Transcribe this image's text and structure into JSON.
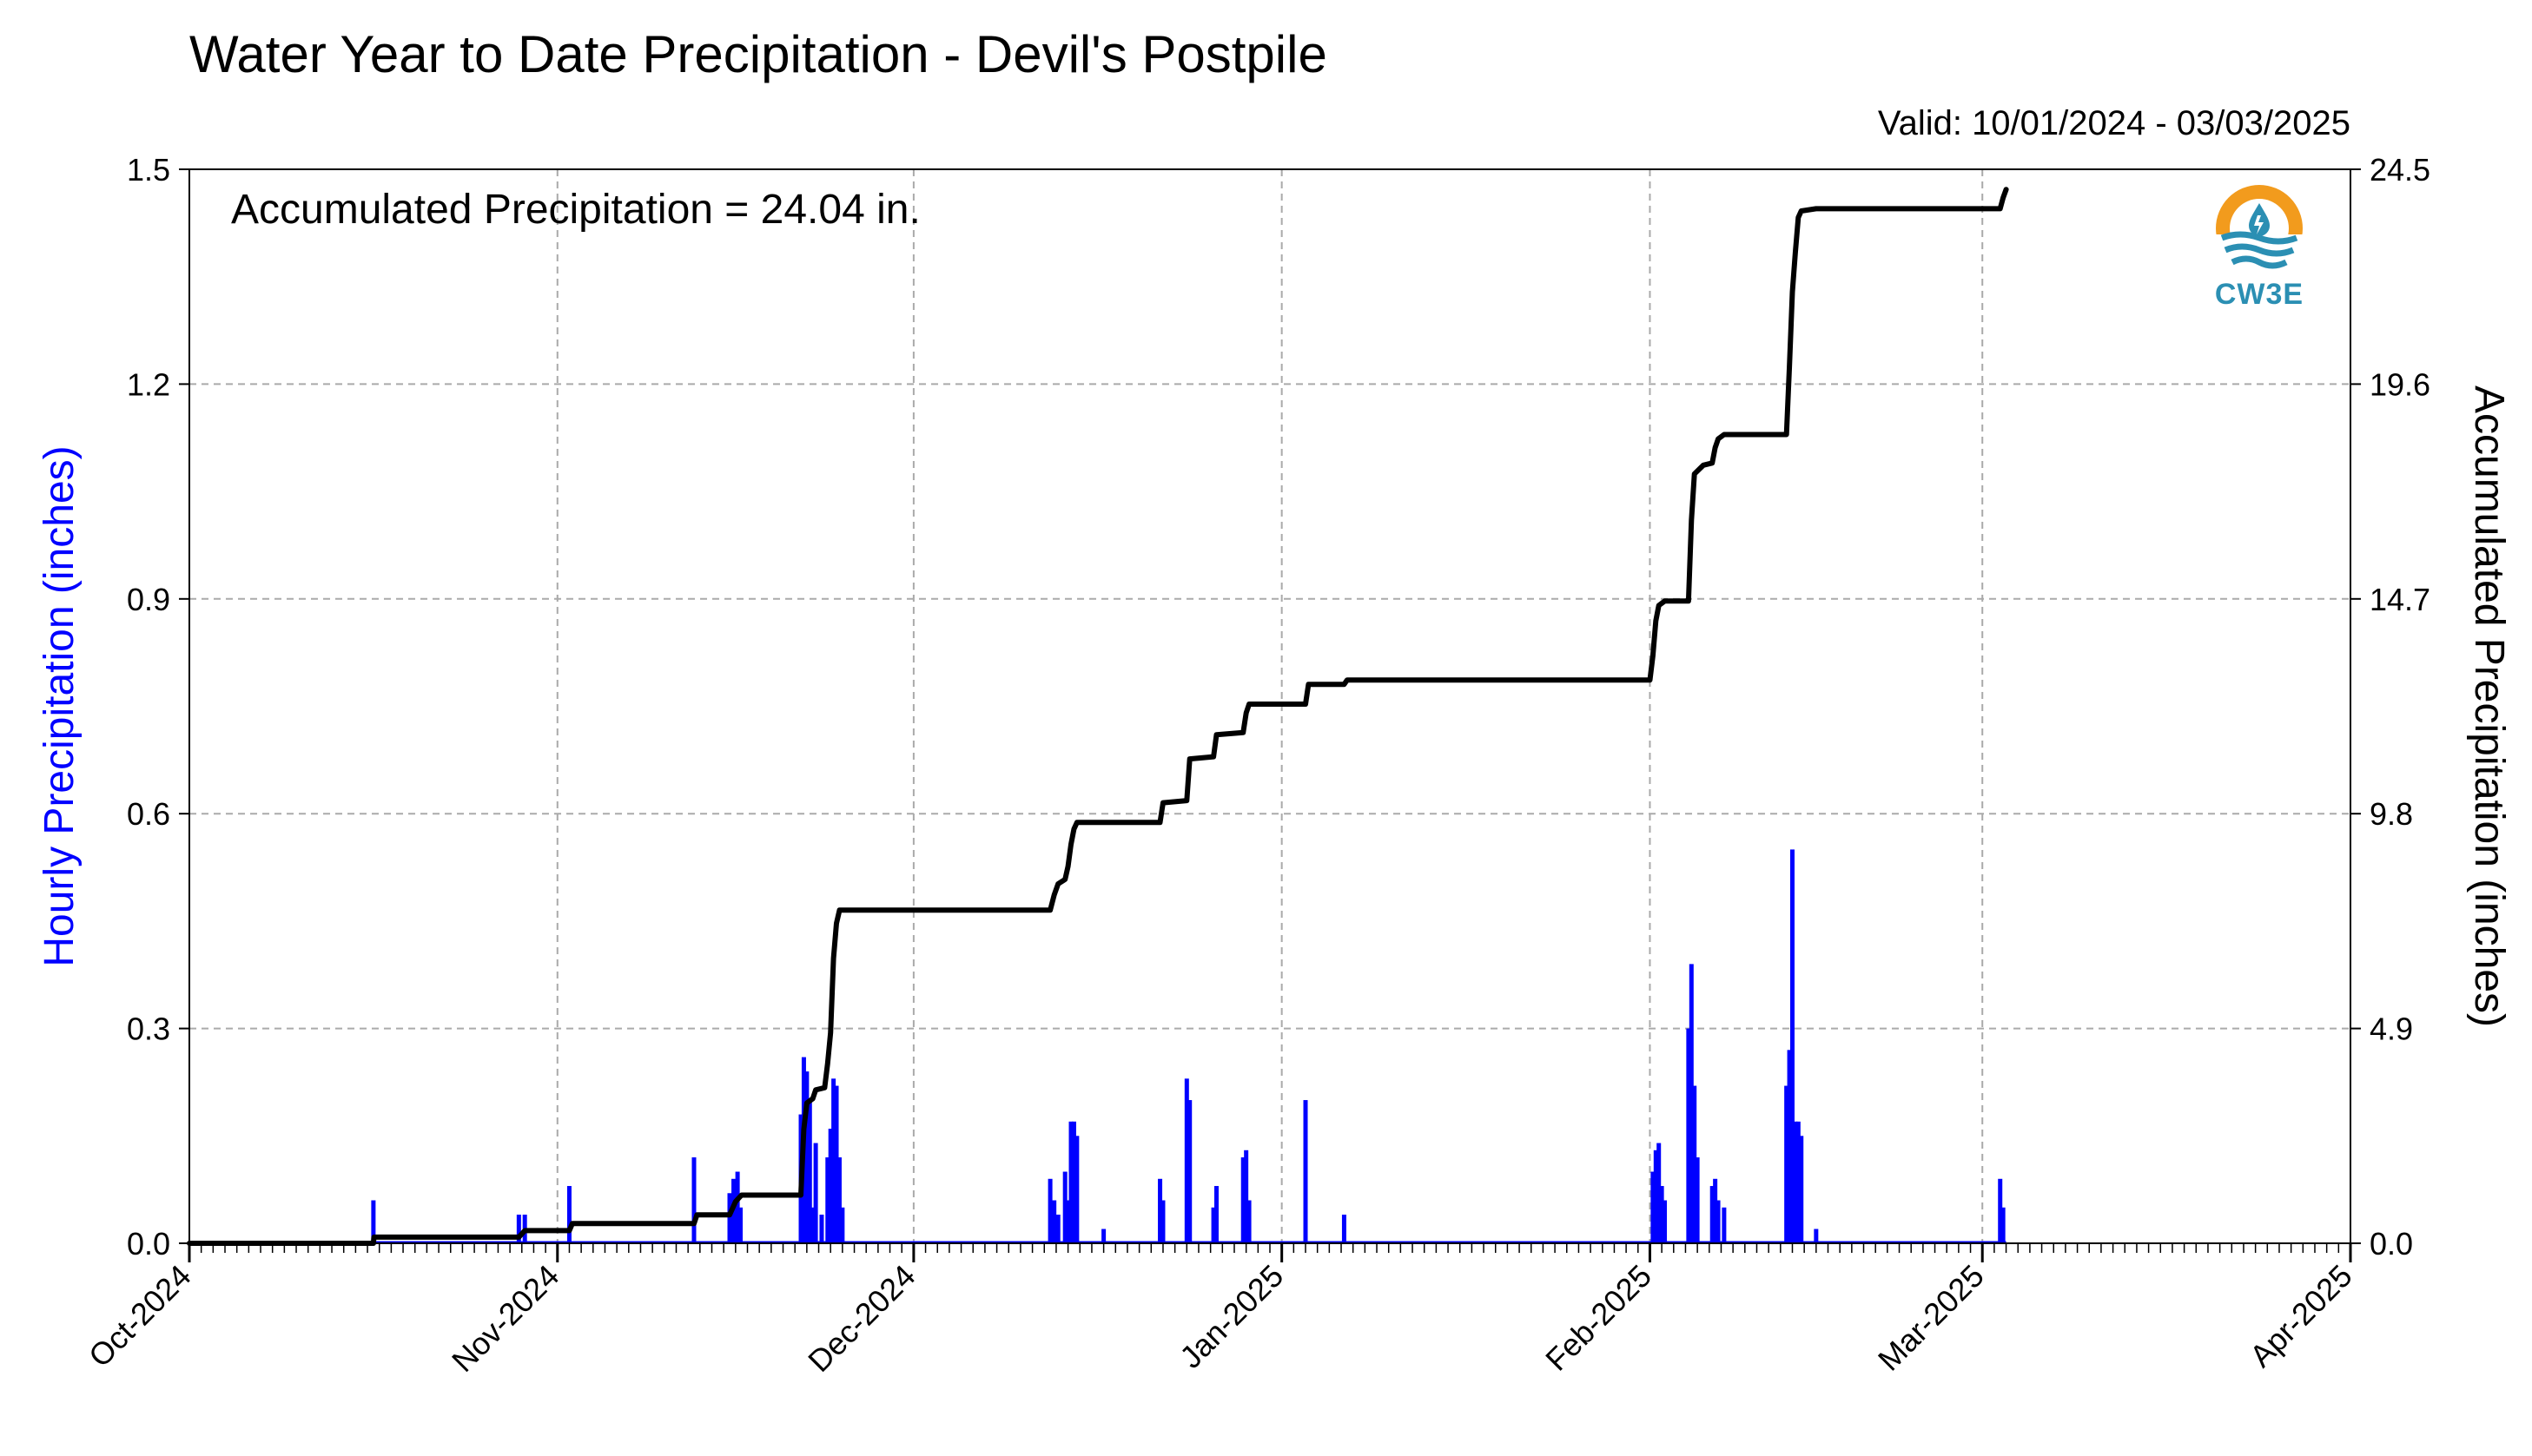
{
  "title": "Water Year to Date Precipitation - Devil's Postpile",
  "valid_label": "Valid: 10/01/2024 - 03/03/2025",
  "annotation": "Accumulated Precipitation = 24.04 in.",
  "logo_text": "CW3E",
  "colors": {
    "hourly": "#0000ff",
    "accumulated": "#000000",
    "grid": "#aaaaaa",
    "logo_orange": "#f29b1d",
    "logo_blue": "#2b8fb3"
  },
  "chart_data": {
    "type": "bar",
    "xlabel": "",
    "ylabel_left": "Hourly Precipitation (inches)",
    "ylabel_right": "Accumulated Precipitation (inches)",
    "xlim": [
      "2024-10-01",
      "2025-04-01"
    ],
    "ylim_left": [
      0,
      1.5
    ],
    "ylim_right": [
      0,
      24.5
    ],
    "x_ticks": [
      {
        "date": "2024-10-01",
        "label": "Oct-2024"
      },
      {
        "date": "2024-11-01",
        "label": "Nov-2024"
      },
      {
        "date": "2024-12-01",
        "label": "Dec-2024"
      },
      {
        "date": "2025-01-01",
        "label": "Jan-2025"
      },
      {
        "date": "2025-02-01",
        "label": "Feb-2025"
      },
      {
        "date": "2025-03-01",
        "label": "Mar-2025"
      },
      {
        "date": "2025-04-01",
        "label": "Apr-2025"
      }
    ],
    "y_ticks_left": [
      {
        "v": 0,
        "label": "0.0"
      },
      {
        "v": 0.3,
        "label": "0.3"
      },
      {
        "v": 0.6,
        "label": "0.6"
      },
      {
        "v": 0.9,
        "label": "0.9"
      },
      {
        "v": 1.2,
        "label": "1.2"
      },
      {
        "v": 1.5,
        "label": "1.5"
      }
    ],
    "y_ticks_right": [
      {
        "v": 0,
        "label": "0.0"
      },
      {
        "v": 4.9,
        "label": "4.9"
      },
      {
        "v": 9.8,
        "label": "9.8"
      },
      {
        "v": 14.7,
        "label": "14.7"
      },
      {
        "v": 19.6,
        "label": "19.6"
      },
      {
        "v": 24.5,
        "label": "24.5"
      }
    ],
    "grid": true,
    "series": [
      {
        "name": "Hourly Precipitation",
        "axis": "left",
        "kind": "bar",
        "points": [
          {
            "x": "2024-10-16T12:00",
            "y": 0.06
          },
          {
            "x": "2024-10-28T18:00",
            "y": 0.04
          },
          {
            "x": "2024-10-29T06:00",
            "y": 0.04
          },
          {
            "x": "2024-11-02T00:00",
            "y": 0.08
          },
          {
            "x": "2024-11-12T12:00",
            "y": 0.12
          },
          {
            "x": "2024-11-15T12:00",
            "y": 0.07
          },
          {
            "x": "2024-11-15T20:00",
            "y": 0.09
          },
          {
            "x": "2024-11-16T04:00",
            "y": 0.1
          },
          {
            "x": "2024-11-16T10:00",
            "y": 0.05
          },
          {
            "x": "2024-11-21T12:00",
            "y": 0.18
          },
          {
            "x": "2024-11-21T18:00",
            "y": 0.26
          },
          {
            "x": "2024-11-22T00:00",
            "y": 0.24
          },
          {
            "x": "2024-11-22T06:00",
            "y": 0.2
          },
          {
            "x": "2024-11-22T12:00",
            "y": 0.05
          },
          {
            "x": "2024-11-22T18:00",
            "y": 0.14
          },
          {
            "x": "2024-11-23T06:00",
            "y": 0.04
          },
          {
            "x": "2024-11-23T18:00",
            "y": 0.12
          },
          {
            "x": "2024-11-24T00:00",
            "y": 0.16
          },
          {
            "x": "2024-11-24T06:00",
            "y": 0.23
          },
          {
            "x": "2024-11-24T12:00",
            "y": 0.22
          },
          {
            "x": "2024-11-24T18:00",
            "y": 0.12
          },
          {
            "x": "2024-11-25T00:00",
            "y": 0.05
          },
          {
            "x": "2024-12-12T12:00",
            "y": 0.09
          },
          {
            "x": "2024-12-12T20:00",
            "y": 0.06
          },
          {
            "x": "2024-12-13T04:00",
            "y": 0.04
          },
          {
            "x": "2024-12-13T18:00",
            "y": 0.1
          },
          {
            "x": "2024-12-14T00:00",
            "y": 0.06
          },
          {
            "x": "2024-12-14T06:00",
            "y": 0.17
          },
          {
            "x": "2024-12-14T12:00",
            "y": 0.17
          },
          {
            "x": "2024-12-14T18:00",
            "y": 0.15
          },
          {
            "x": "2024-12-17T00:00",
            "y": 0.02
          },
          {
            "x": "2024-12-21T18:00",
            "y": 0.09
          },
          {
            "x": "2024-12-22T00:00",
            "y": 0.06
          },
          {
            "x": "2024-12-24T00:00",
            "y": 0.23
          },
          {
            "x": "2024-12-24T06:00",
            "y": 0.2
          },
          {
            "x": "2024-12-26T06:00",
            "y": 0.05
          },
          {
            "x": "2024-12-26T12:00",
            "y": 0.08
          },
          {
            "x": "2024-12-28T18:00",
            "y": 0.12
          },
          {
            "x": "2024-12-29T00:00",
            "y": 0.13
          },
          {
            "x": "2024-12-29T06:00",
            "y": 0.06
          },
          {
            "x": "2025-01-03T00:00",
            "y": 0.2
          },
          {
            "x": "2025-01-06T06:00",
            "y": 0.04
          },
          {
            "x": "2025-02-01T06:00",
            "y": 0.1
          },
          {
            "x": "2025-02-01T12:00",
            "y": 0.13
          },
          {
            "x": "2025-02-01T18:00",
            "y": 0.14
          },
          {
            "x": "2025-02-02T00:00",
            "y": 0.08
          },
          {
            "x": "2025-02-02T06:00",
            "y": 0.06
          },
          {
            "x": "2025-02-04T06:00",
            "y": 0.3
          },
          {
            "x": "2025-02-04T12:00",
            "y": 0.39
          },
          {
            "x": "2025-02-04T18:00",
            "y": 0.22
          },
          {
            "x": "2025-02-05T00:00",
            "y": 0.12
          },
          {
            "x": "2025-02-06T06:00",
            "y": 0.08
          },
          {
            "x": "2025-02-06T12:00",
            "y": 0.09
          },
          {
            "x": "2025-02-06T18:00",
            "y": 0.06
          },
          {
            "x": "2025-02-07T06:00",
            "y": 0.05
          },
          {
            "x": "2025-02-12T12:00",
            "y": 0.22
          },
          {
            "x": "2025-02-12T18:00",
            "y": 0.27
          },
          {
            "x": "2025-02-13T00:00",
            "y": 0.55
          },
          {
            "x": "2025-02-13T06:00",
            "y": 0.17
          },
          {
            "x": "2025-02-13T12:00",
            "y": 0.17
          },
          {
            "x": "2025-02-13T18:00",
            "y": 0.15
          },
          {
            "x": "2025-02-15T00:00",
            "y": 0.02
          },
          {
            "x": "2025-03-02T12:00",
            "y": 0.09
          },
          {
            "x": "2025-03-02T18:00",
            "y": 0.05
          }
        ]
      },
      {
        "name": "Accumulated Precipitation",
        "axis": "right",
        "kind": "line",
        "points": [
          {
            "x": "2024-10-01T00:00",
            "y": 0
          },
          {
            "x": "2024-10-16T12:00",
            "y": 0
          },
          {
            "x": "2024-10-16T13:00",
            "y": 0.14
          },
          {
            "x": "2024-10-28T18:00",
            "y": 0.14
          },
          {
            "x": "2024-10-29T06:00",
            "y": 0.29
          },
          {
            "x": "2024-11-02T00:00",
            "y": 0.29
          },
          {
            "x": "2024-11-02T06:00",
            "y": 0.45
          },
          {
            "x": "2024-11-12T12:00",
            "y": 0.45
          },
          {
            "x": "2024-11-12T18:00",
            "y": 0.65
          },
          {
            "x": "2024-11-15T12:00",
            "y": 0.65
          },
          {
            "x": "2024-11-16T00:00",
            "y": 0.95
          },
          {
            "x": "2024-11-16T12:00",
            "y": 1.1
          },
          {
            "x": "2024-11-21T12:00",
            "y": 1.1
          },
          {
            "x": "2024-11-21T18:00",
            "y": 2.6
          },
          {
            "x": "2024-11-22T00:00",
            "y": 3.2
          },
          {
            "x": "2024-11-22T12:00",
            "y": 3.3
          },
          {
            "x": "2024-11-22T18:00",
            "y": 3.5
          },
          {
            "x": "2024-11-23T12:00",
            "y": 3.55
          },
          {
            "x": "2024-11-23T18:00",
            "y": 4.1
          },
          {
            "x": "2024-11-24T00:00",
            "y": 4.8
          },
          {
            "x": "2024-11-24T06:00",
            "y": 6.5
          },
          {
            "x": "2024-11-24T12:00",
            "y": 7.3
          },
          {
            "x": "2024-11-24T18:00",
            "y": 7.6
          },
          {
            "x": "2024-12-12T12:00",
            "y": 7.6
          },
          {
            "x": "2024-12-12T20:00",
            "y": 7.95
          },
          {
            "x": "2024-12-13T04:00",
            "y": 8.2
          },
          {
            "x": "2024-12-13T18:00",
            "y": 8.3
          },
          {
            "x": "2024-12-14T00:00",
            "y": 8.6
          },
          {
            "x": "2024-12-14T06:00",
            "y": 9.1
          },
          {
            "x": "2024-12-14T12:00",
            "y": 9.45
          },
          {
            "x": "2024-12-14T18:00",
            "y": 9.6
          },
          {
            "x": "2024-12-21T18:00",
            "y": 9.6
          },
          {
            "x": "2024-12-22T00:00",
            "y": 10.05
          },
          {
            "x": "2024-12-24T00:00",
            "y": 10.1
          },
          {
            "x": "2024-12-24T06:00",
            "y": 11.05
          },
          {
            "x": "2024-12-26T06:00",
            "y": 11.1
          },
          {
            "x": "2024-12-26T12:00",
            "y": 11.6
          },
          {
            "x": "2024-12-28T18:00",
            "y": 11.65
          },
          {
            "x": "2024-12-29T00:00",
            "y": 12.1
          },
          {
            "x": "2024-12-29T06:00",
            "y": 12.3
          },
          {
            "x": "2025-01-03T00:00",
            "y": 12.3
          },
          {
            "x": "2025-01-03T06:00",
            "y": 12.75
          },
          {
            "x": "2025-01-06T06:00",
            "y": 12.75
          },
          {
            "x": "2025-01-06T12:00",
            "y": 12.85
          },
          {
            "x": "2025-02-01T00:00",
            "y": 12.85
          },
          {
            "x": "2025-02-01T06:00",
            "y": 13.4
          },
          {
            "x": "2025-02-01T12:00",
            "y": 14.2
          },
          {
            "x": "2025-02-01T18:00",
            "y": 14.55
          },
          {
            "x": "2025-02-02T06:00",
            "y": 14.65
          },
          {
            "x": "2025-02-04T06:00",
            "y": 14.65
          },
          {
            "x": "2025-02-04T12:00",
            "y": 16.5
          },
          {
            "x": "2025-02-04T18:00",
            "y": 17.55
          },
          {
            "x": "2025-02-05T12:00",
            "y": 17.75
          },
          {
            "x": "2025-02-06T06:00",
            "y": 17.8
          },
          {
            "x": "2025-02-06T12:00",
            "y": 18.15
          },
          {
            "x": "2025-02-06T18:00",
            "y": 18.35
          },
          {
            "x": "2025-02-07T06:00",
            "y": 18.45
          },
          {
            "x": "2025-02-12T12:00",
            "y": 18.45
          },
          {
            "x": "2025-02-12T18:00",
            "y": 20.0
          },
          {
            "x": "2025-02-13T00:00",
            "y": 21.7
          },
          {
            "x": "2025-02-13T06:00",
            "y": 22.6
          },
          {
            "x": "2025-02-13T12:00",
            "y": 23.4
          },
          {
            "x": "2025-02-13T18:00",
            "y": 23.55
          },
          {
            "x": "2025-02-15T00:00",
            "y": 23.6
          },
          {
            "x": "2025-03-02T12:00",
            "y": 23.6
          },
          {
            "x": "2025-03-02T18:00",
            "y": 23.85
          },
          {
            "x": "2025-03-03T00:00",
            "y": 24.04
          }
        ]
      }
    ]
  }
}
